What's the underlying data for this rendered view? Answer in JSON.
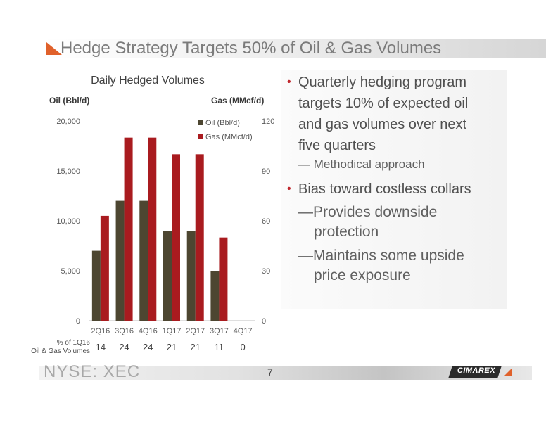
{
  "slide": {
    "title": "Hedge Strategy Targets 50% of Oil & Gas Volumes",
    "ticker": "NYSE: XEC",
    "page_number": "7",
    "logo_text": "CIMAREX"
  },
  "bullets": {
    "b1": "Quarterly hedging program",
    "b1_line2": "targets 10% of expected oil",
    "b1_line3": "and gas volumes over next",
    "b1_line4": "five quarters",
    "b1_sub": "— Methodical approach",
    "b2": "Bias toward costless collars",
    "b2_sub1_line1": "—Provides downside",
    "b2_sub1_line2": "protection",
    "b2_sub2_line1": "—Maintains some upside",
    "b2_sub2_line2": "price exposure"
  },
  "chart_data": {
    "type": "bar",
    "title": "Daily Hedged Volumes",
    "left_axis_label": "Oil (Bbl/d)",
    "right_axis_label": "Gas  (MMcf/d)",
    "categories": [
      "2Q16",
      "3Q16",
      "4Q16",
      "1Q17",
      "2Q17",
      "3Q17",
      "4Q17"
    ],
    "series": [
      {
        "name": "Oil (Bbl/d)",
        "axis": "left",
        "color": "#4d4631",
        "values": [
          7000,
          12000,
          12000,
          9000,
          9000,
          5000,
          0
        ]
      },
      {
        "name": "Gas (MMcf/d)",
        "axis": "right",
        "color": "#a91b1f",
        "values": [
          63,
          110,
          110,
          100,
          100,
          50,
          0
        ]
      }
    ],
    "left_ylim": [
      0,
      20000
    ],
    "left_ticks": [
      "0",
      "5,000",
      "10,000",
      "15,000",
      "20,000"
    ],
    "right_ylim": [
      0,
      120
    ],
    "right_ticks": [
      "0",
      "30",
      "60",
      "90",
      "120"
    ],
    "legend_position": "top-right",
    "grid": false,
    "pct_row_label_line1": "% of 1Q16",
    "pct_row_label_line2": "Oil & Gas Volumes",
    "pct_values": [
      "14",
      "24",
      "24",
      "21",
      "21",
      "11",
      "0"
    ]
  }
}
